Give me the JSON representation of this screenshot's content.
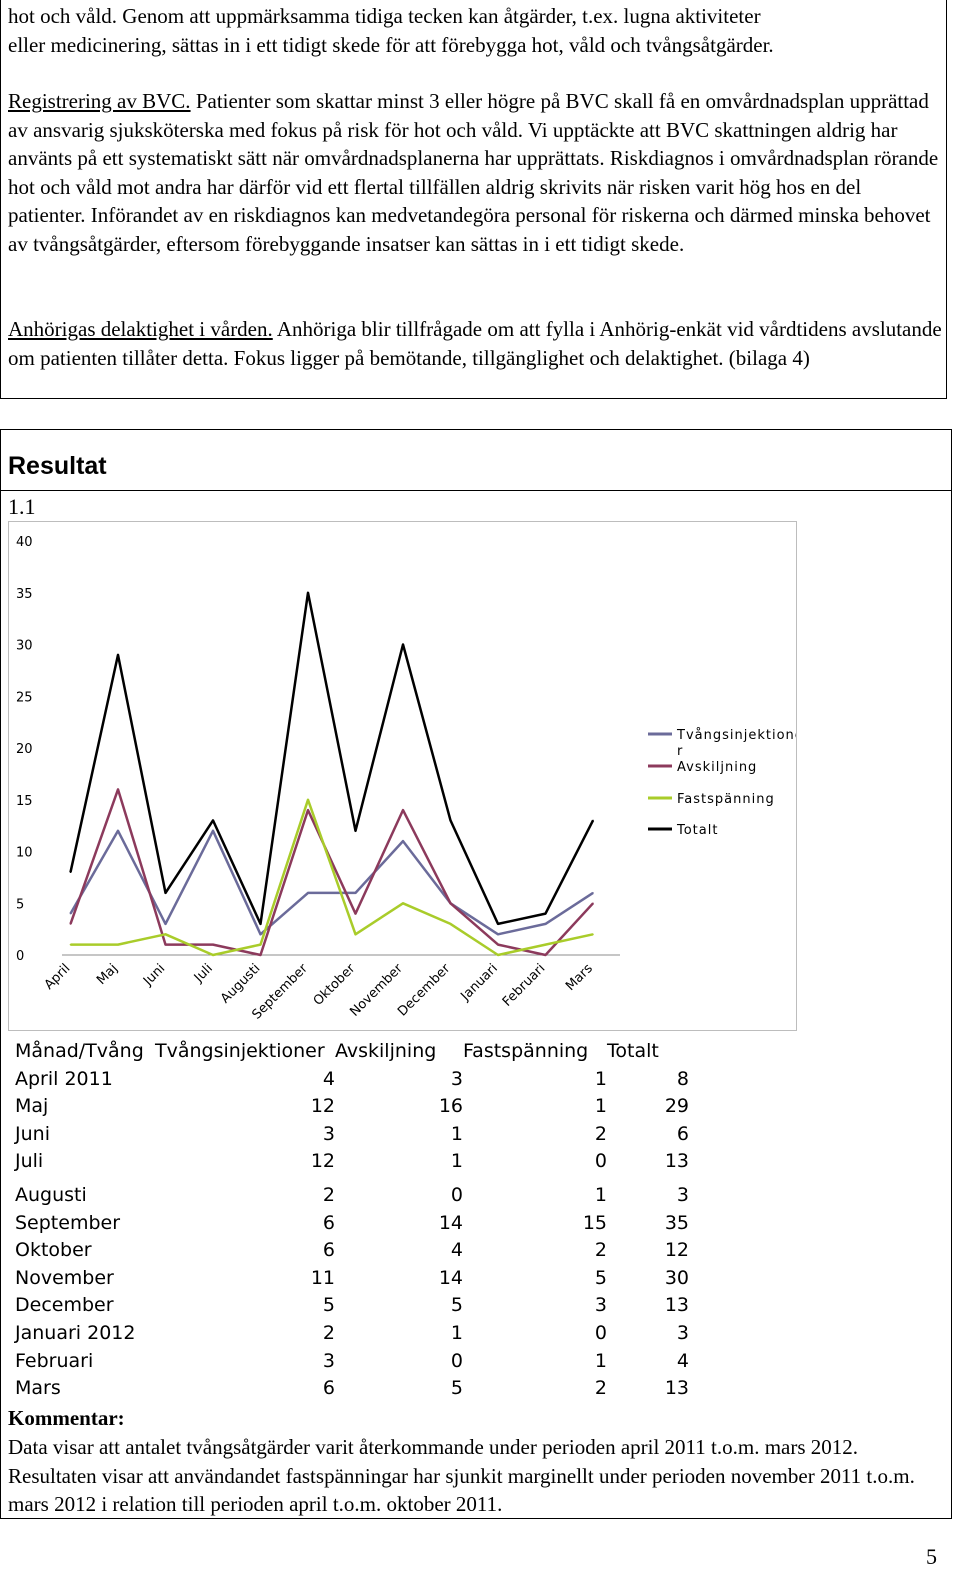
{
  "intro": {
    "line1": "hot och våld. Genom att uppmärksamma tidiga tecken kan åtgärder, t.ex. lugna aktiviteter",
    "line2": "eller medicinering, sättas in i ett tidigt skede för att förebygga hot, våld och tvångsåtgärder."
  },
  "bvc": {
    "heading": "Registrering av BVC.",
    "text": " Patienter som skattar minst 3 eller högre på BVC skall få en omvårdnadsplan upprättad av ansvarig sjuksköterska med fokus på risk för hot och våld. Vi upptäckte att BVC skattningen aldrig har använts på ett systematiskt sätt när omvårdnadsplanerna har upprättats. Riskdiagnos i omvårdnadsplan rörande hot och våld mot andra har därför vid ett flertal tillfällen aldrig skrivits när risken varit hög hos en del patienter. Införandet av en riskdiagnos kan medvetandegöra personal för riskerna och därmed minska behovet av tvångsåtgärder, eftersom förebyggande insatser kan sättas in i ett tidigt skede."
  },
  "anhoriga": {
    "heading": "Anhörigas delaktighet i vården.",
    "text": " Anhöriga blir tillfrågade om att fylla i Anhörig-enkät vid vårdtidens avslutande om patienten tillåter detta. Fokus ligger på bemötande, tillgänglighet och delaktighet. (bilaga 4)"
  },
  "resultat": {
    "title": "Resultat",
    "subtitle": "1.1"
  },
  "chart_data": {
    "type": "line",
    "categories": [
      "April",
      "Maj",
      "Juni",
      "Juli",
      "Augusti",
      "September",
      "Oktober",
      "November",
      "December",
      "Januari",
      "Februari",
      "Mars"
    ],
    "series": [
      {
        "name": "Tvångsinjektioner",
        "color": "#6b6b9a",
        "values": [
          4,
          12,
          3,
          12,
          2,
          6,
          6,
          11,
          5,
          2,
          3,
          6
        ]
      },
      {
        "name": "Avskiljning",
        "color": "#8c3a5c",
        "values": [
          3,
          16,
          1,
          1,
          0,
          14,
          4,
          14,
          5,
          1,
          0,
          5
        ]
      },
      {
        "name": "Fastspänning",
        "color": "#a9cc2a",
        "values": [
          1,
          1,
          2,
          0,
          1,
          15,
          2,
          5,
          3,
          0,
          1,
          2
        ]
      },
      {
        "name": "Totalt",
        "color": "#000000",
        "values": [
          8,
          29,
          6,
          13,
          3,
          35,
          12,
          30,
          13,
          3,
          4,
          13
        ]
      }
    ],
    "legend": [
      "Tvångsinjektione r",
      "Avskiljning",
      "Fastspänning",
      "Totalt"
    ],
    "yticks": [
      "40",
      "35",
      "30",
      "25",
      "20",
      "15",
      "10",
      "5",
      "0"
    ],
    "ylim": [
      0,
      40
    ],
    "legend_position": "right"
  },
  "table": {
    "headers": [
      "Månad/Tvång",
      "Tvångsinjektioner",
      "Avskiljning",
      "Fastspänning",
      "Totalt"
    ],
    "rows": [
      [
        "April 2011",
        "4",
        "3",
        "1",
        "8"
      ],
      [
        "Maj",
        "12",
        "16",
        "1",
        "29"
      ],
      [
        "Juni",
        "3",
        "1",
        "2",
        "6"
      ],
      [
        "Juli",
        "12",
        "1",
        "0",
        "13"
      ],
      [
        "Augusti",
        "2",
        "0",
        "1",
        "3"
      ],
      [
        "September",
        "6",
        "14",
        "15",
        "35"
      ],
      [
        "Oktober",
        "6",
        "4",
        "2",
        "12"
      ],
      [
        "November",
        "11",
        "14",
        "5",
        "30"
      ],
      [
        "December",
        "5",
        "5",
        "3",
        "13"
      ],
      [
        "Januari 2012",
        "2",
        "1",
        "0",
        "3"
      ],
      [
        "Februari",
        "3",
        "0",
        "1",
        "4"
      ],
      [
        "Mars",
        "6",
        "5",
        "2",
        "13"
      ]
    ]
  },
  "kommentar": {
    "title": "Kommentar:",
    "text": "Data visar att antalet tvångsåtgärder varit återkommande under perioden april 2011 t.o.m. mars 2012. Resultaten visar att användandet fastspänningar har sjunkit marginellt under perioden november 2011 t.o.m. mars 2012 i relation till perioden april t.o.m. oktober 2011."
  },
  "page_number": "5"
}
